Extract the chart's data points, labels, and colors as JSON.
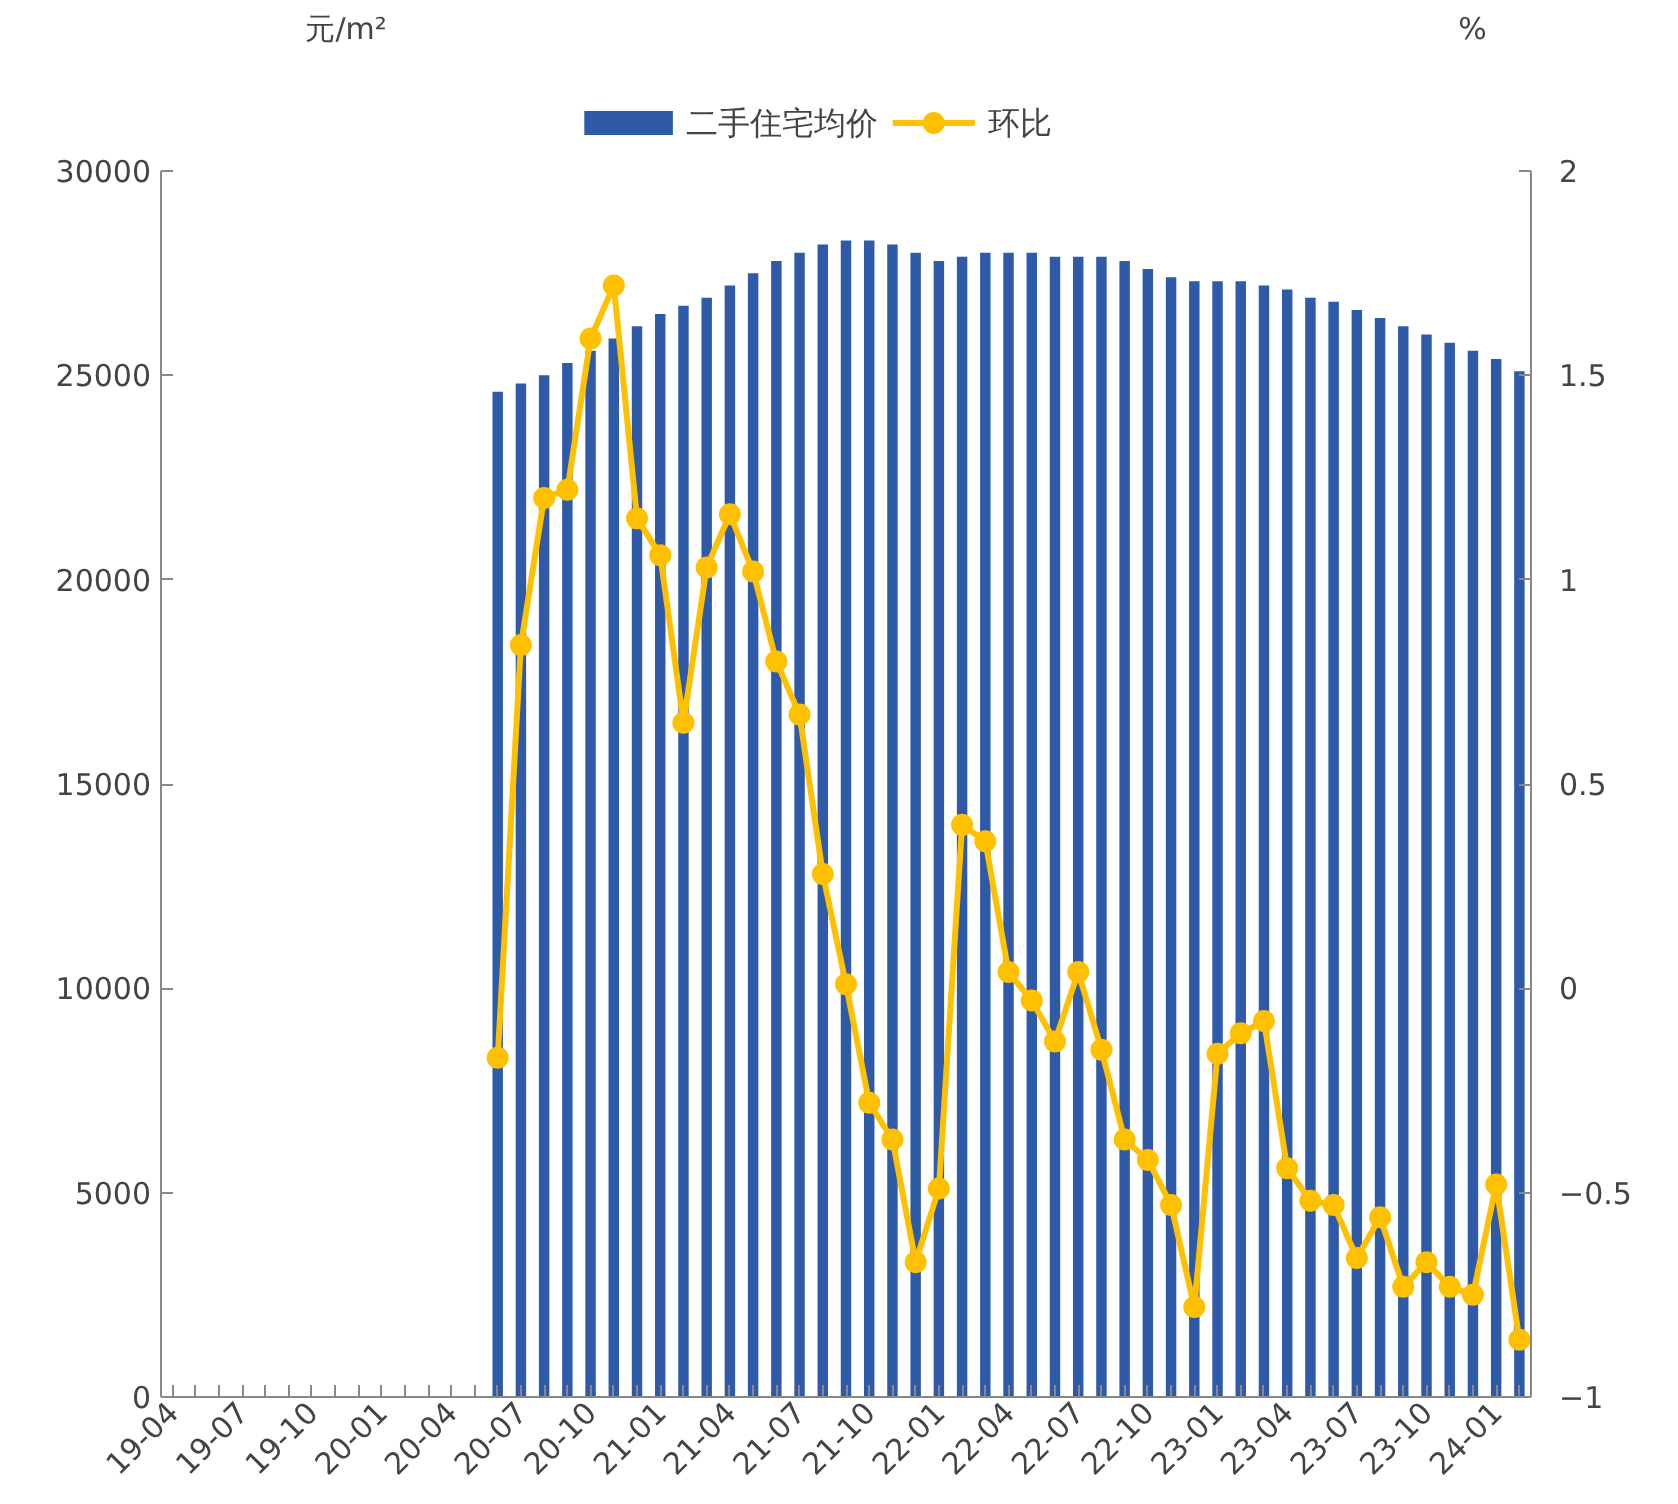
{
  "chart_data": {
    "type": "bar",
    "annotations": [
      "元/m²",
      "%"
    ],
    "categories": [
      "19-04",
      null,
      null,
      "19-07",
      null,
      null,
      "19-10",
      null,
      null,
      "20-01",
      null,
      null,
      "20-04",
      null,
      null,
      "20-07",
      null,
      null,
      "20-10",
      null,
      null,
      "21-01",
      null,
      null,
      "21-04",
      null,
      null,
      "21-07",
      null,
      null,
      "21-10",
      null,
      null,
      "22-01",
      null,
      null,
      "22-04",
      null,
      null,
      "22-07",
      null,
      null,
      "22-10",
      null,
      null,
      "23-01",
      null,
      null,
      "23-04",
      null,
      null,
      "23-07",
      null,
      null,
      "23-10",
      null,
      null,
      "24-01",
      null
    ],
    "series": [
      {
        "name": "二手住宅均价",
        "color": "#2e5aa8",
        "values": [
          null,
          null,
          null,
          null,
          null,
          null,
          null,
          null,
          null,
          null,
          null,
          null,
          null,
          null,
          24600,
          24800,
          25000,
          25300,
          25600,
          25900,
          26200,
          26500,
          26700,
          26900,
          27200,
          27500,
          27800,
          28000,
          28200,
          28300,
          28300,
          28200,
          28000,
          27800,
          27900,
          28000,
          28000,
          28000,
          27900,
          27900,
          27900,
          27800,
          27600,
          27400,
          27300,
          27300,
          27300,
          27200,
          27100,
          26900,
          26800,
          26600,
          26400,
          26200,
          26000,
          25800,
          25600,
          25400,
          25100
        ]
      },
      {
        "name": "环比",
        "type": "line",
        "axis": "y2",
        "color": "#ffc000",
        "marker": "circle",
        "values": [
          null,
          null,
          null,
          null,
          null,
          null,
          null,
          null,
          null,
          null,
          null,
          null,
          null,
          null,
          -0.17,
          0.84,
          1.2,
          1.22,
          1.59,
          1.72,
          1.15,
          1.06,
          0.65,
          1.03,
          1.16,
          1.02,
          0.8,
          0.67,
          0.28,
          0.01,
          -0.28,
          -0.37,
          -0.67,
          -0.49,
          0.4,
          0.36,
          0.04,
          -0.03,
          -0.13,
          0.04,
          -0.15,
          -0.37,
          -0.42,
          -0.53,
          -0.78,
          -0.16,
          -0.11,
          -0.08,
          -0.44,
          -0.52,
          -0.53,
          -0.66,
          -0.56,
          -0.73,
          -0.67,
          -0.73,
          -0.75,
          -0.48,
          -0.86
        ]
      }
    ],
    "ylim": [
      0,
      30000
    ],
    "yticks": [
      0,
      5000,
      10000,
      15000,
      20000,
      25000,
      30000
    ],
    "y2lim": [
      -1,
      2
    ],
    "y2ticks": [
      {
        "value": -1,
        "label": "−1"
      },
      {
        "value": -0.5,
        "label": "−0.5"
      },
      0,
      0.5,
      1,
      1.5,
      2
    ],
    "grid": false,
    "legend": "top"
  }
}
